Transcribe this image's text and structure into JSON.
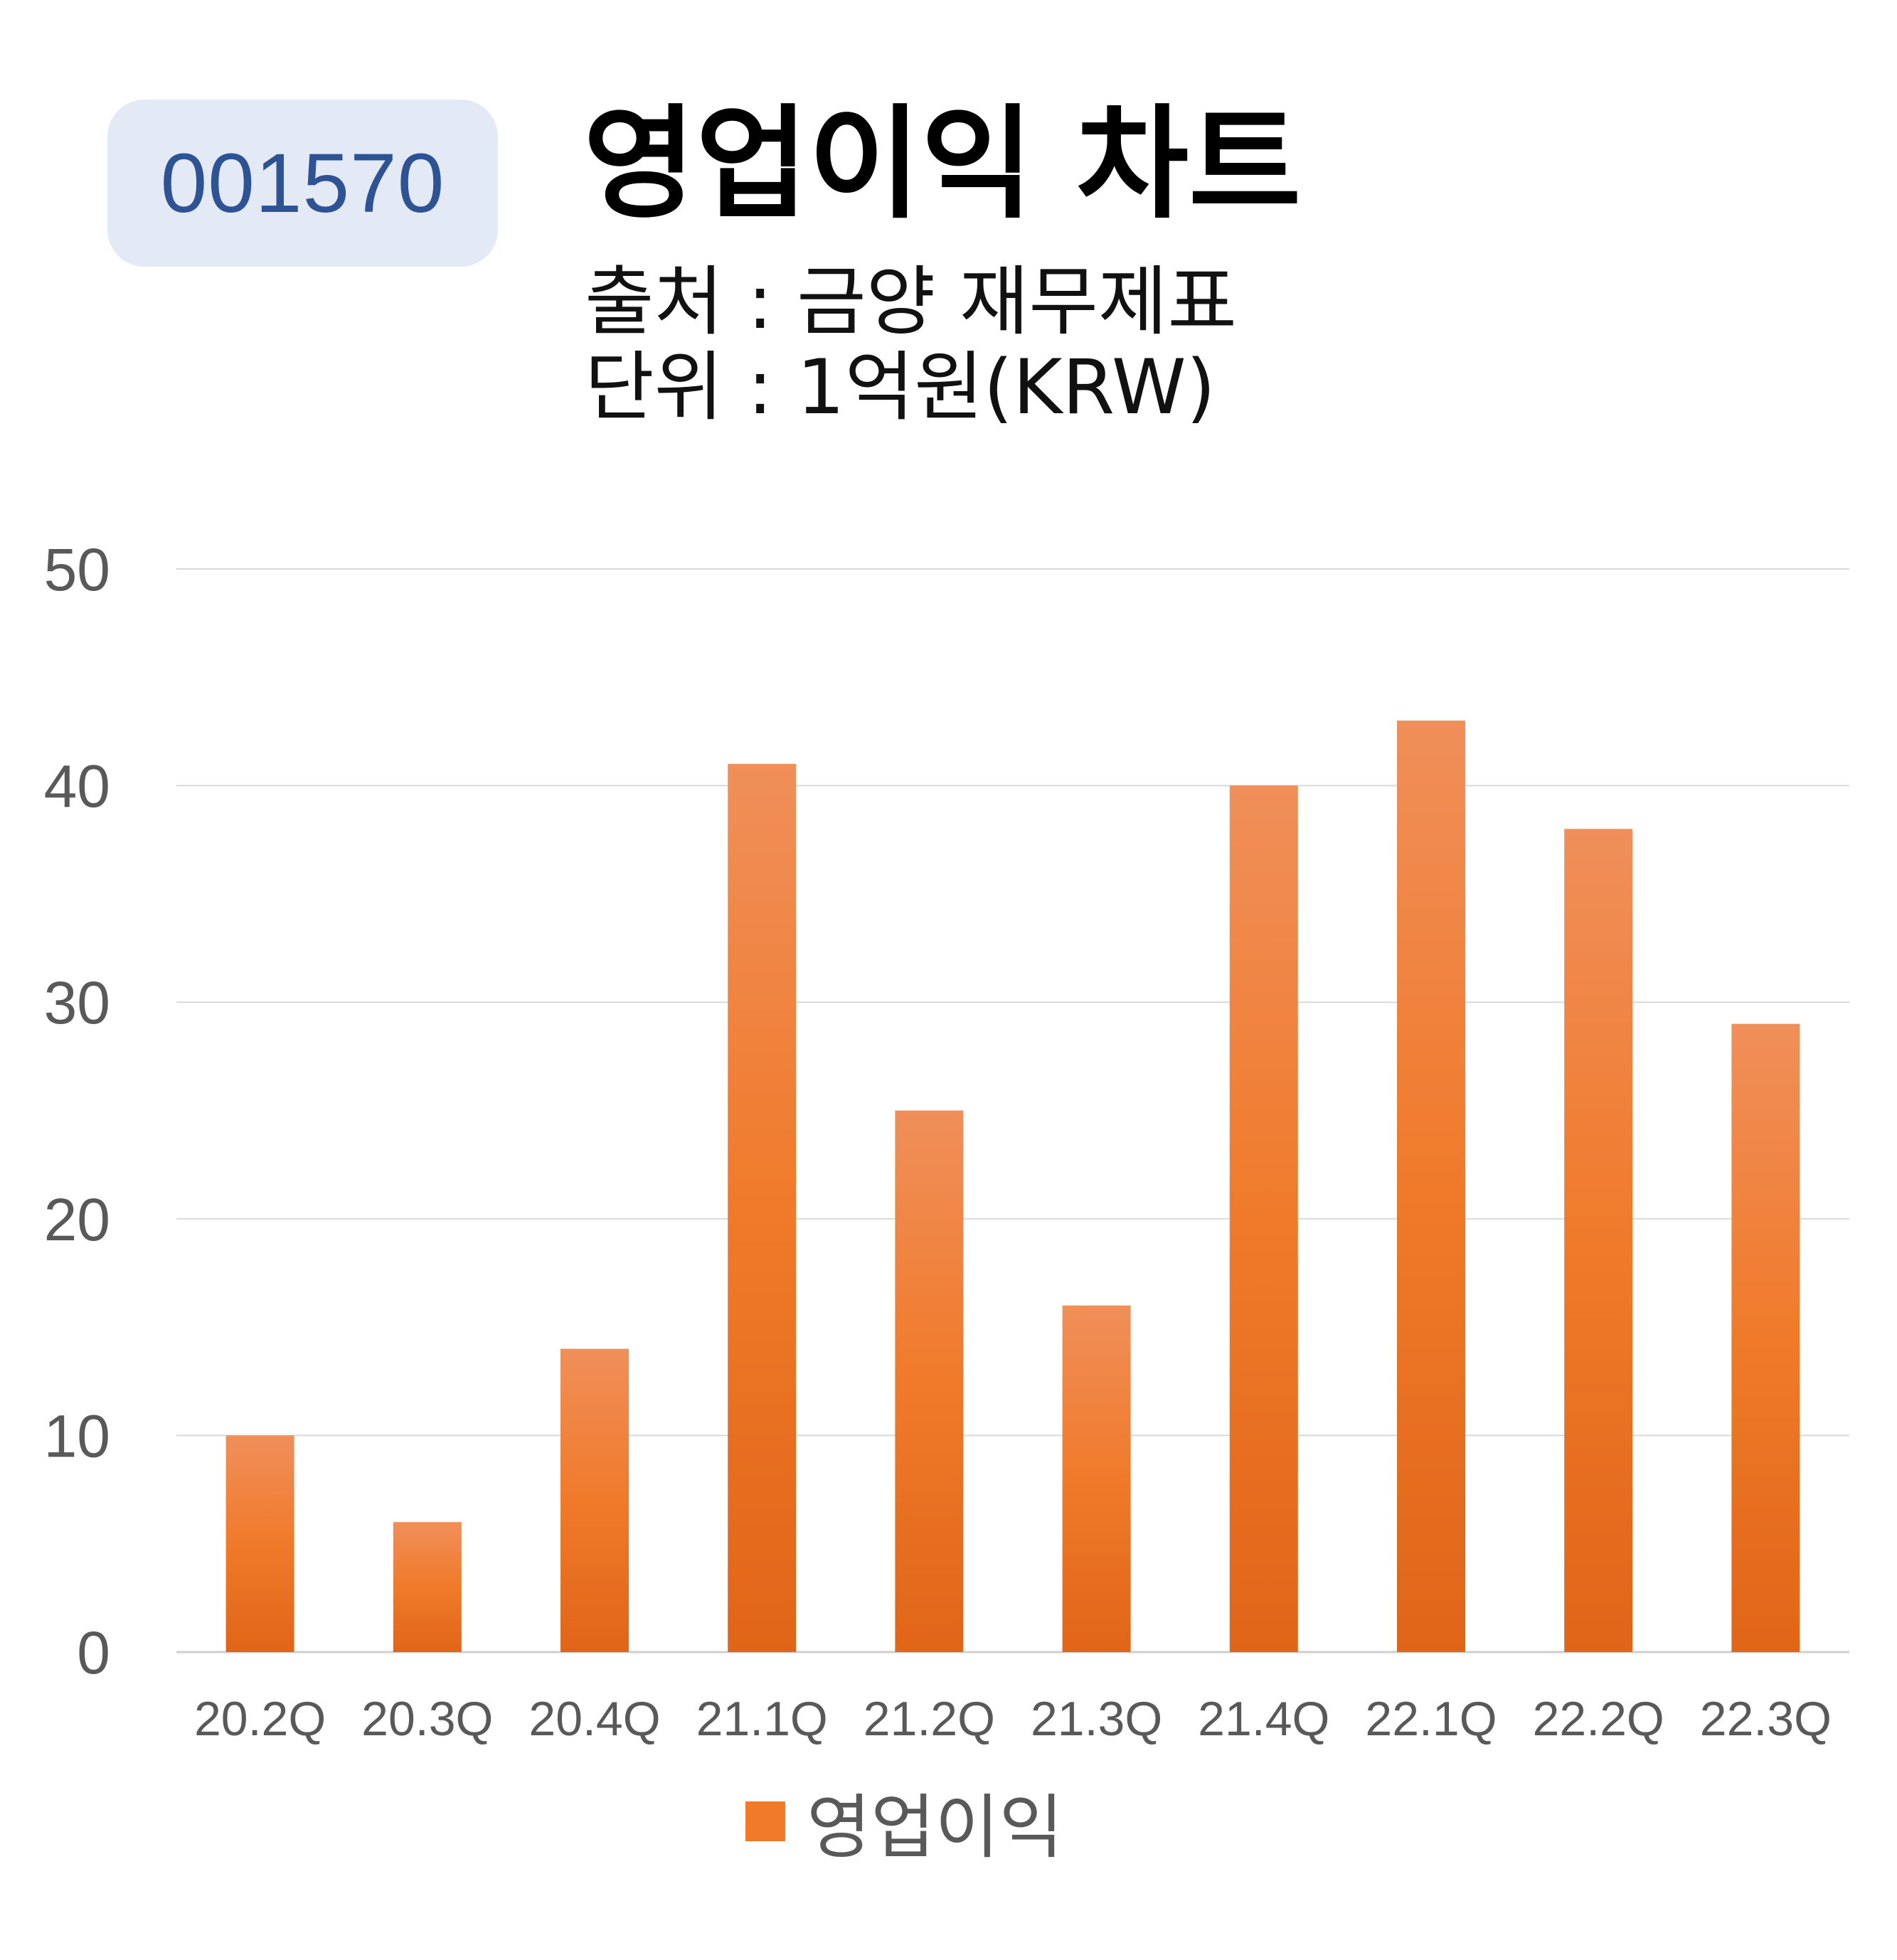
{
  "badge": {
    "code": "001570"
  },
  "header": {
    "title": "영업이익 차트",
    "source": "출처 : 금양 재무제표",
    "unit": "단위 : 1억원(KRW)"
  },
  "colors": {
    "bar_top": "#f08f5a",
    "bar_mid": "#f07a2a",
    "bar_bottom": "#e06518",
    "grid": "#d9d9d9",
    "badge_bg": "#e3e9f5",
    "badge_text": "#2e5395"
  },
  "chart_data": {
    "type": "bar",
    "categories": [
      "20.2Q",
      "20.3Q",
      "20.4Q",
      "21.1Q",
      "21.2Q",
      "21.3Q",
      "21.4Q",
      "22.1Q",
      "22.2Q",
      "22.3Q"
    ],
    "series": [
      {
        "name": "영업이익",
        "values": [
          10,
          6,
          14,
          41,
          25,
          16,
          40,
          43,
          38,
          29
        ]
      }
    ],
    "ylim": [
      0,
      50
    ],
    "yticks": [
      0,
      10,
      20,
      30,
      40,
      50
    ],
    "grid": true,
    "legend_position": "bottom"
  }
}
